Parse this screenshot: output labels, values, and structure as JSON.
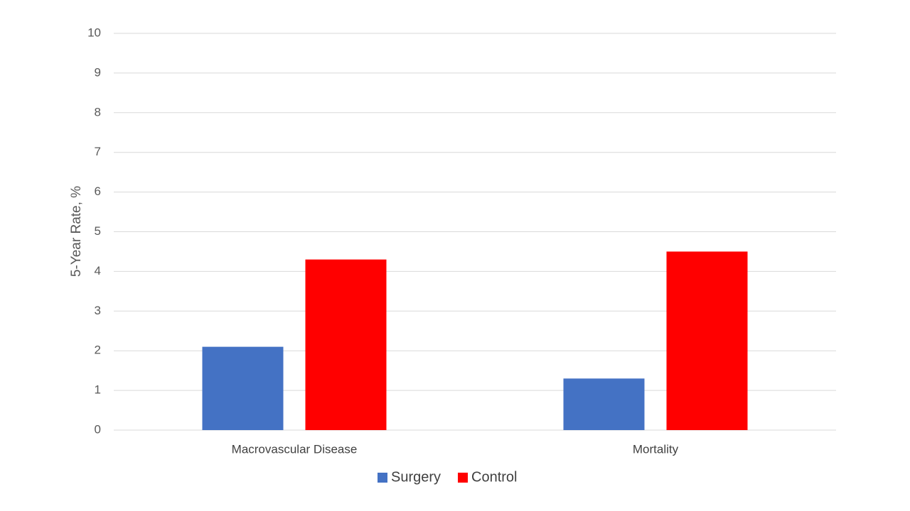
{
  "chart_data": {
    "type": "bar",
    "title": "",
    "xlabel": "",
    "ylabel": "5-Year Rate, %",
    "ylim": [
      0,
      10
    ],
    "yticks": [
      0,
      1,
      2,
      3,
      4,
      5,
      6,
      7,
      8,
      9,
      10
    ],
    "grid": true,
    "legend_position": "bottom",
    "categories": [
      "Macrovascular Disease",
      "Mortality"
    ],
    "series": [
      {
        "name": "Surgery",
        "color": "#4472C4",
        "values": [
          2.1,
          1.3
        ]
      },
      {
        "name": "Control",
        "color": "#FF0000",
        "values": [
          4.3,
          4.5
        ]
      }
    ]
  }
}
